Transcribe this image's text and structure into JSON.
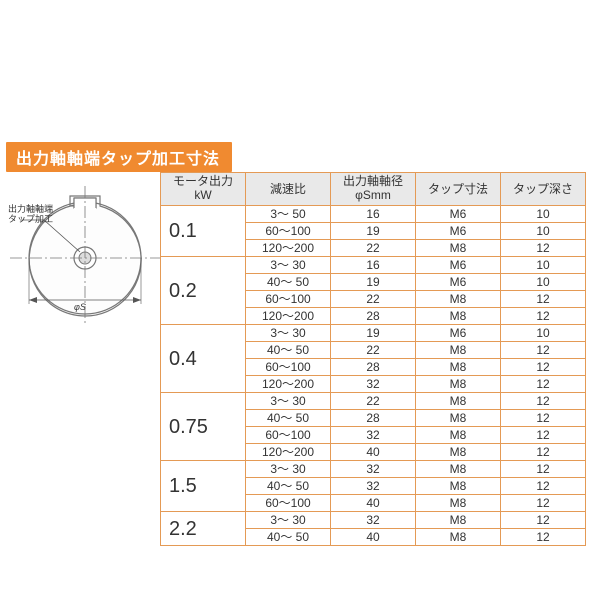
{
  "title": "出力軸軸端タップ加工寸法",
  "diagram": {
    "label_top_1": "出力軸軸端",
    "label_top_2": "タップ加工",
    "label_bottom": "φS",
    "stroke_color": "#888888",
    "fill_color": "#f8f8f8"
  },
  "columns": {
    "motor": "モータ出力\nkW",
    "ratio": "減速比",
    "shaft": "出力軸軸径\nφSmm",
    "tap": "タップ寸法",
    "depth": "タップ深さ"
  },
  "groups": [
    {
      "motor": "0.1",
      "rows": [
        {
          "ratio": "3～ 50",
          "shaft": "16",
          "tap": "M6",
          "depth": "10"
        },
        {
          "ratio": "60～100",
          "shaft": "19",
          "tap": "M6",
          "depth": "10"
        },
        {
          "ratio": "120～200",
          "shaft": "22",
          "tap": "M8",
          "depth": "12"
        }
      ]
    },
    {
      "motor": "0.2",
      "rows": [
        {
          "ratio": "3～ 30",
          "shaft": "16",
          "tap": "M6",
          "depth": "10"
        },
        {
          "ratio": "40～ 50",
          "shaft": "19",
          "tap": "M6",
          "depth": "10"
        },
        {
          "ratio": "60～100",
          "shaft": "22",
          "tap": "M8",
          "depth": "12"
        },
        {
          "ratio": "120～200",
          "shaft": "28",
          "tap": "M8",
          "depth": "12"
        }
      ]
    },
    {
      "motor": "0.4",
      "rows": [
        {
          "ratio": "3～ 30",
          "shaft": "19",
          "tap": "M6",
          "depth": "10"
        },
        {
          "ratio": "40～ 50",
          "shaft": "22",
          "tap": "M8",
          "depth": "12"
        },
        {
          "ratio": "60～100",
          "shaft": "28",
          "tap": "M8",
          "depth": "12"
        },
        {
          "ratio": "120～200",
          "shaft": "32",
          "tap": "M8",
          "depth": "12"
        }
      ]
    },
    {
      "motor": "0.75",
      "rows": [
        {
          "ratio": "3～ 30",
          "shaft": "22",
          "tap": "M8",
          "depth": "12"
        },
        {
          "ratio": "40～ 50",
          "shaft": "28",
          "tap": "M8",
          "depth": "12"
        },
        {
          "ratio": "60～100",
          "shaft": "32",
          "tap": "M8",
          "depth": "12"
        },
        {
          "ratio": "120～200",
          "shaft": "40",
          "tap": "M8",
          "depth": "12"
        }
      ]
    },
    {
      "motor": "1.5",
      "rows": [
        {
          "ratio": "3～ 30",
          "shaft": "32",
          "tap": "M8",
          "depth": "12"
        },
        {
          "ratio": "40～ 50",
          "shaft": "32",
          "tap": "M8",
          "depth": "12"
        },
        {
          "ratio": "60～100",
          "shaft": "40",
          "tap": "M8",
          "depth": "12"
        }
      ]
    },
    {
      "motor": "2.2",
      "rows": [
        {
          "ratio": "3～ 30",
          "shaft": "32",
          "tap": "M8",
          "depth": "12"
        },
        {
          "ratio": "40～ 50",
          "shaft": "40",
          "tap": "M8",
          "depth": "12"
        }
      ]
    }
  ],
  "colors": {
    "title_bg": "#f08a30",
    "title_fg": "#ffffff",
    "border": "#e49a55",
    "header_bg": "#e9e9e9",
    "text": "#333333"
  }
}
